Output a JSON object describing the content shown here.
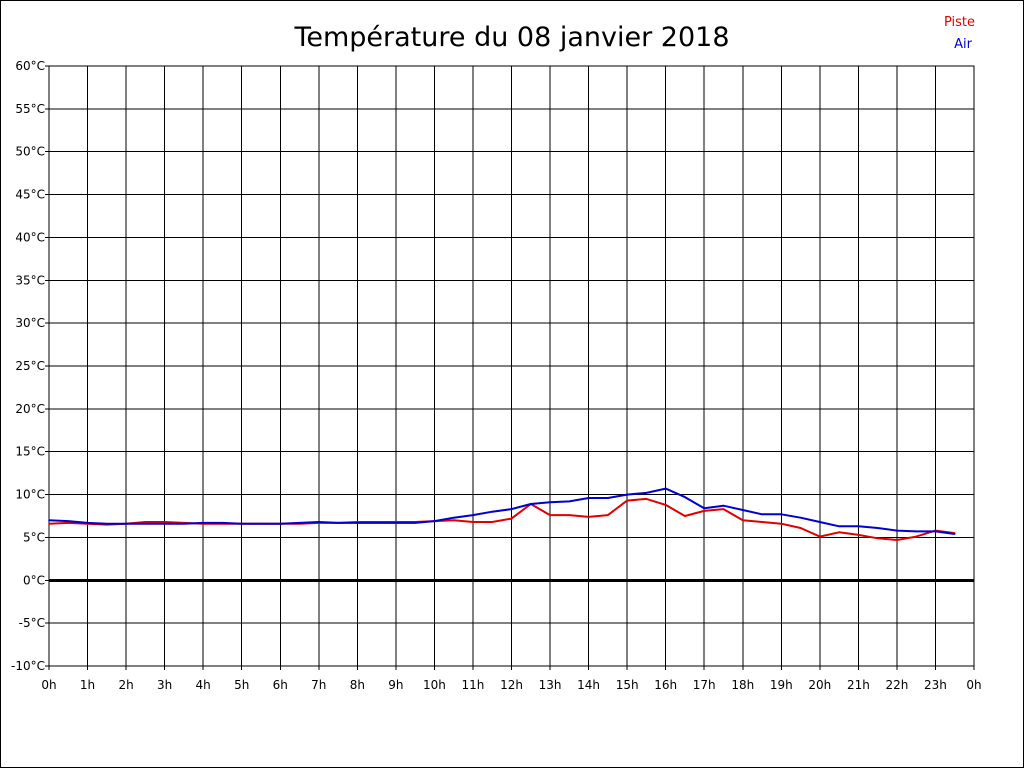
{
  "chart_data": {
    "type": "line",
    "title": "Température du 08 janvier 2018",
    "xlabel": "",
    "ylabel": "",
    "xlim": [
      0,
      24
    ],
    "ylim": [
      -10,
      60
    ],
    "grid": true,
    "legend_position": "top-right",
    "x_tick_labels": [
      "0h",
      "1h",
      "2h",
      "3h",
      "4h",
      "5h",
      "6h",
      "7h",
      "8h",
      "9h",
      "10h",
      "11h",
      "12h",
      "13h",
      "14h",
      "15h",
      "16h",
      "17h",
      "18h",
      "19h",
      "20h",
      "21h",
      "22h",
      "23h",
      "0h"
    ],
    "y_tick_labels": [
      "60°C",
      "55°C",
      "50°C",
      "45°C",
      "40°C",
      "35°C",
      "30°C",
      "25°C",
      "20°C",
      "15°C",
      "10°C",
      "5°C",
      "0°C",
      "-5°C",
      "-10°C"
    ],
    "y_tick_values": [
      60,
      55,
      50,
      45,
      40,
      35,
      30,
      25,
      20,
      15,
      10,
      5,
      0,
      -5,
      -10
    ],
    "zero_line": 0,
    "x": [
      0,
      0.5,
      1,
      1.5,
      2,
      2.5,
      3,
      3.5,
      4,
      4.5,
      5,
      5.5,
      6,
      6.5,
      7,
      7.5,
      8,
      8.5,
      9,
      9.5,
      10,
      10.5,
      11,
      11.5,
      12,
      12.5,
      13,
      13.5,
      14,
      14.5,
      15,
      15.5,
      16,
      16.5,
      17,
      17.5,
      18,
      18.5,
      19,
      19.5,
      20,
      20.5,
      21,
      21.5,
      22,
      22.5,
      23,
      23.5
    ],
    "series": [
      {
        "name": "Piste",
        "color": "#e00000",
        "values": [
          6.6,
          6.7,
          6.6,
          6.5,
          6.6,
          6.8,
          6.8,
          6.7,
          6.6,
          6.6,
          6.6,
          6.6,
          6.6,
          6.6,
          6.7,
          6.7,
          6.8,
          6.8,
          6.8,
          6.8,
          6.9,
          7.0,
          6.8,
          6.8,
          7.2,
          8.9,
          7.6,
          7.6,
          7.4,
          7.6,
          9.3,
          9.5,
          8.8,
          7.5,
          8.1,
          8.3,
          7.0,
          6.8,
          6.6,
          6.1,
          5.1,
          5.6,
          5.3,
          4.9,
          4.7,
          5.1,
          5.8,
          5.5
        ]
      },
      {
        "name": "Air",
        "color": "#0000d0",
        "values": [
          7.0,
          6.9,
          6.7,
          6.6,
          6.6,
          6.6,
          6.6,
          6.6,
          6.7,
          6.7,
          6.6,
          6.6,
          6.6,
          6.7,
          6.8,
          6.7,
          6.7,
          6.7,
          6.7,
          6.7,
          6.9,
          7.3,
          7.6,
          8.0,
          8.3,
          8.9,
          9.1,
          9.2,
          9.6,
          9.6,
          10.0,
          10.2,
          10.7,
          9.7,
          8.4,
          8.7,
          8.2,
          7.7,
          7.7,
          7.3,
          6.8,
          6.3,
          6.3,
          6.1,
          5.8,
          5.7,
          5.7,
          5.4
        ]
      }
    ]
  }
}
